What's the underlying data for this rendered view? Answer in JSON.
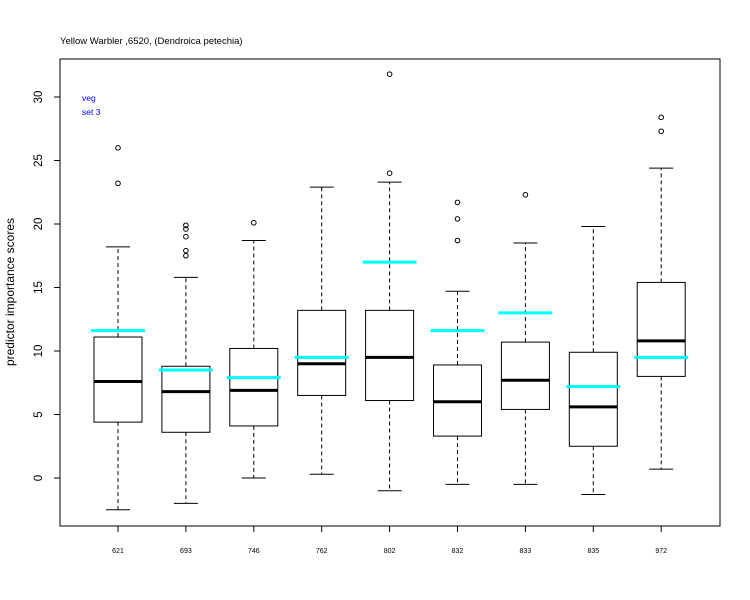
{
  "chart_data": {
    "type": "boxplot",
    "title": "Yellow Warbler ,6520, (Dendroica petechia)",
    "xlabel": "",
    "ylabel": "predictor importance scores",
    "ylim": [
      -3.7,
      33.0
    ],
    "yticks": [
      0,
      5,
      10,
      15,
      20,
      25,
      30
    ],
    "grid": false,
    "annotations": [
      "veg",
      "set 3"
    ],
    "colors": {
      "box": "#000000",
      "median": "#000000",
      "reference": "#00ffff",
      "annotation": "#0000ff"
    },
    "categories": [
      "621",
      "693",
      "746",
      "762",
      "802",
      "832",
      "833",
      "835",
      "972"
    ],
    "boxes": [
      {
        "category": "621",
        "whisker_low": -2.5,
        "q1": 4.4,
        "median": 7.6,
        "q3": 11.1,
        "whisker_high": 18.2,
        "outliers": [
          23.2,
          26.0
        ],
        "reference": 11.6
      },
      {
        "category": "693",
        "whisker_low": -2.0,
        "q1": 3.6,
        "median": 6.8,
        "q3": 8.8,
        "whisker_high": 15.8,
        "outliers": [
          17.5,
          17.9,
          19.0,
          19.6,
          19.9
        ],
        "reference": 8.5
      },
      {
        "category": "746",
        "whisker_low": 0.0,
        "q1": 4.1,
        "median": 6.9,
        "q3": 10.2,
        "whisker_high": 18.7,
        "outliers": [
          20.1
        ],
        "reference": 7.9
      },
      {
        "category": "762",
        "whisker_low": 0.3,
        "q1": 6.5,
        "median": 9.0,
        "q3": 13.2,
        "whisker_high": 22.9,
        "outliers": [],
        "reference": 9.5
      },
      {
        "category": "802",
        "whisker_low": -1.0,
        "q1": 6.1,
        "median": 9.5,
        "q3": 13.2,
        "whisker_high": 23.3,
        "outliers": [
          24.0,
          31.8
        ],
        "reference": 17.0
      },
      {
        "category": "832",
        "whisker_low": -0.5,
        "q1": 3.3,
        "median": 6.0,
        "q3": 8.9,
        "whisker_high": 14.7,
        "outliers": [
          18.7,
          20.4,
          21.7
        ],
        "reference": 11.6
      },
      {
        "category": "833",
        "whisker_low": -0.5,
        "q1": 5.4,
        "median": 7.7,
        "q3": 10.7,
        "whisker_high": 18.5,
        "outliers": [
          22.3
        ],
        "reference": 13.0
      },
      {
        "category": "835",
        "whisker_low": -1.3,
        "q1": 2.5,
        "median": 5.6,
        "q3": 9.9,
        "whisker_high": 19.8,
        "outliers": [],
        "reference": 7.2
      },
      {
        "category": "972",
        "whisker_low": 0.7,
        "q1": 8.0,
        "median": 10.8,
        "q3": 15.4,
        "whisker_high": 24.4,
        "outliers": [
          27.3,
          28.4
        ],
        "reference": 9.5
      }
    ]
  }
}
